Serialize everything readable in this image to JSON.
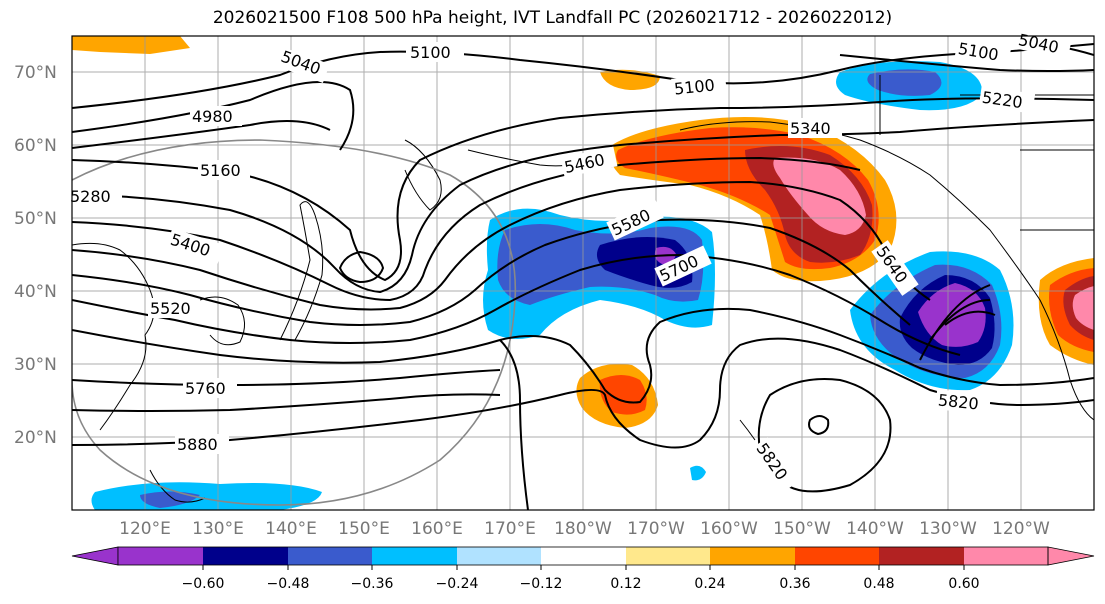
{
  "title": "2026021500 F108 500 hPa height, IVT Landfall PC (2026021712 - 2026022012)",
  "map": {
    "lat_labels": [
      "70°N",
      "60°N",
      "50°N",
      "40°N",
      "30°N",
      "20°N"
    ],
    "lon_labels": [
      "120°E",
      "130°E",
      "140°E",
      "150°E",
      "160°E",
      "170°E",
      "180°W",
      "170°W",
      "160°W",
      "150°W",
      "140°W",
      "130°W",
      "120°W"
    ],
    "contour_labels": [
      "5100",
      "5040",
      "4980",
      "5160",
      "5280",
      "5400",
      "5460",
      "5520",
      "5580",
      "5700",
      "5760",
      "5880",
      "5340",
      "5100",
      "5220",
      "5640",
      "5820",
      "5820",
      "5100",
      "5040"
    ]
  },
  "colorbar": {
    "ticks": [
      "−0.60",
      "−0.48",
      "−0.36",
      "−0.24",
      "−0.12",
      "0.12",
      "0.24",
      "0.36",
      "0.48",
      "0.60"
    ],
    "colors": [
      "#9933cc",
      "#00008b",
      "#3a5bcd",
      "#00bfff",
      "#b0e2ff",
      "#ffffff",
      "#ffe88c",
      "#ffa500",
      "#ff4500",
      "#b22222",
      "#ff88aa"
    ]
  }
}
